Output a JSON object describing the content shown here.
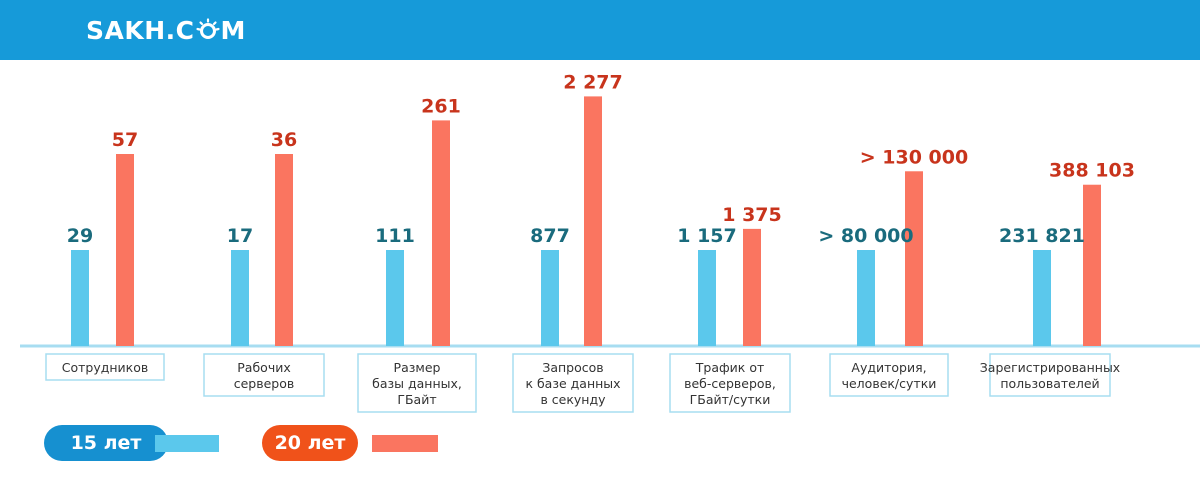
{
  "header": {
    "logo_text_left": "SAKH.C",
    "logo_text_right": "M"
  },
  "colors": {
    "header": "#169ad9",
    "series_15": "#5bc8ec",
    "series_20": "#fa7560",
    "label_15": "#1a6b7d",
    "label_20": "#c8341c",
    "baseline": "#a7ddf1",
    "box_border": "#a7ddf1",
    "pill_15": "#1690d0",
    "pill_20": "#f0521a"
  },
  "legend": {
    "items": [
      {
        "label": "15 лет"
      },
      {
        "label": "20 лет"
      }
    ]
  },
  "chart_data": {
    "type": "bar",
    "categories": [
      [
        "Сотрудников"
      ],
      [
        "Рабочих",
        "серверов"
      ],
      [
        "Размер",
        "базы данных,",
        "ГБайт"
      ],
      [
        "Запросов",
        "к базе данных",
        "в секунду"
      ],
      [
        "Трафик от",
        "веб-серверов,",
        "ГБайт/сутки"
      ],
      [
        "Аудитория,",
        "человек/сутки"
      ],
      [
        "Зарегистрированных",
        "пользователей"
      ]
    ],
    "series": [
      {
        "name": "15 лет",
        "labels": [
          "29",
          "17",
          "111",
          "877",
          "1 157",
          "> 80 000",
          "231 821"
        ]
      },
      {
        "name": "20 лет",
        "labels": [
          "57",
          "36",
          "261",
          "2 277",
          "1 375",
          "> 130 000",
          "388 103"
        ]
      }
    ],
    "values_15": [
      29,
      17,
      111,
      877,
      1157,
      80000,
      231821
    ],
    "values_20": [
      57,
      36,
      261,
      2277,
      1375,
      130000,
      388103
    ],
    "relative_heights_20": [
      2.0,
      2.0,
      2.35,
      2.6,
      1.22,
      1.82,
      1.68
    ]
  }
}
